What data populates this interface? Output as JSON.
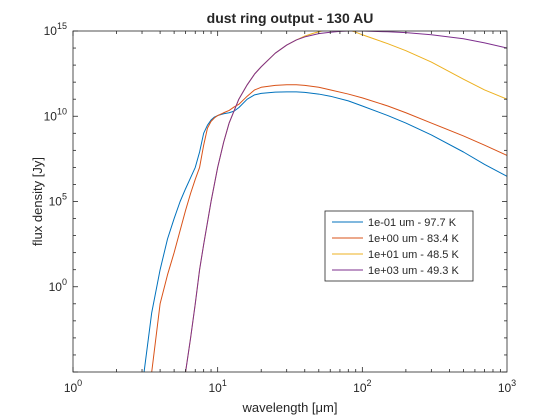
{
  "chart_data": {
    "type": "line",
    "title": "dust ring output - 130 AU",
    "xlabel": "wavelength [μm]",
    "ylabel": "flux density [Jy]",
    "xscale": "log",
    "yscale": "log",
    "xlim": [
      1,
      1000
    ],
    "ylim": [
      1e-05,
      1000000000000000.0
    ],
    "xticks": [
      {
        "value": 1,
        "base": "10",
        "exp": "0"
      },
      {
        "value": 10,
        "base": "10",
        "exp": "1"
      },
      {
        "value": 100,
        "base": "10",
        "exp": "2"
      },
      {
        "value": 1000,
        "base": "10",
        "exp": "3"
      }
    ],
    "yticks": [
      {
        "value": 1,
        "base": "10",
        "exp": "0"
      },
      {
        "value": 100000,
        "base": "10",
        "exp": "5"
      },
      {
        "value": 10000000000.0,
        "base": "10",
        "exp": "10"
      },
      {
        "value": 1000000000000000.0,
        "base": "10",
        "exp": "15"
      }
    ],
    "grid": false,
    "legend_position": "center-right",
    "series": [
      {
        "name": "1e-01 um - 97.7 K",
        "color": "#0072BD",
        "x": [
          3.1,
          3.5,
          4.0,
          4.5,
          5.0,
          5.5,
          6.0,
          6.5,
          7.0,
          7.5,
          8.0,
          8.5,
          9.0,
          9.5,
          10.0,
          11.0,
          12.0,
          13.0,
          14.0,
          16.0,
          18.0,
          20.0,
          25.0,
          30.0,
          35.0,
          40.0,
          50.0,
          60.0,
          80.0,
          100.0,
          150.0,
          200.0,
          300.0,
          500.0,
          700.0,
          1000.0
        ],
        "y": [
          1e-05,
          0.03,
          10,
          630,
          10000,
          100000,
          560000,
          2500000,
          10000000,
          80000000,
          1000000000.0,
          3000000000.0,
          6000000000.0,
          9000000000.0,
          11000000000.0,
          14000000000.0,
          16000000000.0,
          20000000000.0,
          32000000000.0,
          100000000000.0,
          180000000000.0,
          220000000000.0,
          260000000000.0,
          270000000000.0,
          270000000000.0,
          250000000000.0,
          200000000000.0,
          150000000000.0,
          80000000000.0,
          40000000000.0,
          11000000000.0,
          4000000000.0,
          800000000.0,
          80000000.0,
          15000000.0,
          3000000.0
        ]
      },
      {
        "name": "1e+00 um - 83.4 K",
        "color": "#D95319",
        "x": [
          3.5,
          4.0,
          4.5,
          5.0,
          5.5,
          6.0,
          6.5,
          7.0,
          7.5,
          8.0,
          8.5,
          9.0,
          9.5,
          10.0,
          11.0,
          12.0,
          13.0,
          14.0,
          16.0,
          18.0,
          20.0,
          25.0,
          30.0,
          35.0,
          40.0,
          50.0,
          60.0,
          80.0,
          100.0,
          150.0,
          200.0,
          300.0,
          500.0,
          700.0,
          1000.0
        ],
        "y": [
          1e-05,
          0.1,
          5,
          100,
          2000,
          30000,
          300000,
          2000000,
          10000000,
          200000000,
          2000000000.0,
          5000000000.0,
          8000000000.0,
          11000000000.0,
          16000000000.0,
          22000000000.0,
          35000000000.0,
          50000000000.0,
          150000000000.0,
          350000000000.0,
          500000000000.0,
          650000000000.0,
          700000000000.0,
          700000000000.0,
          650000000000.0,
          500000000000.0,
          350000000000.0,
          200000000000.0,
          120000000000.0,
          40000000000.0,
          16000000000.0,
          4000000000.0,
          700000000.0,
          200000000.0,
          50000000.0
        ]
      },
      {
        "name": "1e+01 um - 48.5 K",
        "color": "#EDB120",
        "x": [
          6.0,
          6.5,
          7.0,
          7.5,
          8.0,
          9.0,
          10.0,
          11.0,
          12.0,
          14.0,
          16.0,
          18.0,
          20.0,
          25.0,
          30.0,
          35.0,
          40.0,
          45.0,
          50.0,
          55.0,
          60.0,
          65.0,
          70.0,
          75.0,
          80.0,
          85.0,
          90.0,
          100.0,
          120.0,
          150.0,
          200.0,
          300.0,
          500.0,
          700.0,
          1000.0
        ],
        "y": [
          1e-05,
          0.001,
          0.1,
          10,
          300,
          100000,
          10000000,
          300000000,
          4000000000.0,
          100000000000.0,
          700000000000.0,
          3000000000000.0,
          8000000000000.0,
          50000000000000.0,
          150000000000000.0,
          300000000000000.0,
          500000000000000.0,
          700000000000000.0,
          900000000000000.0,
          1100000000000000.0,
          1250000000000000.0,
          1350000000000000.0,
          1400000000000000.0,
          1350000000000000.0,
          1200000000000000.0,
          1000000000000000.0,
          850000000000000.0,
          600000000000000.0,
          350000000000000.0,
          180000000000000.0,
          70000000000000.0,
          15000000000000.0,
          1500000000000.0,
          350000000000.0,
          100000000000.0
        ]
      },
      {
        "name": "1e+03 um - 49.3 K",
        "color": "#7E2F8E",
        "x": [
          6.0,
          6.5,
          7.0,
          7.5,
          8.0,
          9.0,
          10.0,
          11.0,
          12.0,
          14.0,
          16.0,
          18.0,
          20.0,
          25.0,
          30.0,
          35.0,
          40.0,
          50.0,
          60.0,
          70.0,
          80.0,
          90.0,
          100.0,
          120.0,
          150.0,
          200.0,
          300.0,
          500.0,
          700.0,
          1000.0
        ],
        "y": [
          1e-05,
          0.001,
          0.1,
          10,
          300,
          100000,
          10000000,
          300000000,
          4000000000.0,
          100000000000.0,
          700000000000.0,
          3000000000000.0,
          8000000000000.0,
          50000000000000.0,
          150000000000000.0,
          300000000000000.0,
          450000000000000.0,
          700000000000000.0,
          850000000000000.0,
          950000000000000.0,
          1000000000000000.0,
          1000000000000000.0,
          1000000000000000.0,
          950000000000000.0,
          900000000000000.0,
          800000000000000.0,
          600000000000000.0,
          350000000000000.0,
          200000000000000.0,
          100000000000000.0
        ]
      }
    ]
  }
}
